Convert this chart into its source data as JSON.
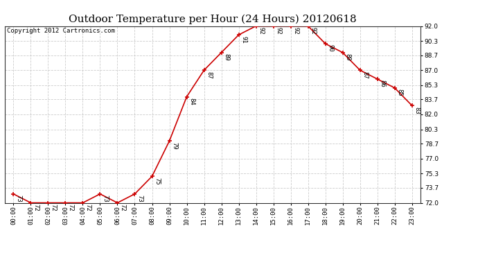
{
  "title": "Outdoor Temperature per Hour (24 Hours) 20120618",
  "copyright_text": "Copyright 2012 Cartronics.com",
  "hours": [
    "00:00",
    "01:00",
    "02:00",
    "03:00",
    "04:00",
    "05:00",
    "06:00",
    "07:00",
    "08:00",
    "09:00",
    "10:00",
    "11:00",
    "12:00",
    "13:00",
    "14:00",
    "15:00",
    "16:00",
    "17:00",
    "18:00",
    "19:00",
    "20:00",
    "21:00",
    "22:00",
    "23:00"
  ],
  "temperatures": [
    73,
    72,
    72,
    72,
    72,
    73,
    72,
    73,
    75,
    79,
    84,
    87,
    89,
    91,
    92,
    92,
    92,
    92,
    90,
    89,
    87,
    86,
    85,
    83
  ],
  "ylim_min": 72.0,
  "ylim_max": 92.0,
  "yticks": [
    72.0,
    73.7,
    75.3,
    77.0,
    78.7,
    80.3,
    82.0,
    83.7,
    85.3,
    87.0,
    88.7,
    90.3,
    92.0
  ],
  "line_color": "#cc0000",
  "marker_color": "#cc0000",
  "bg_color": "#ffffff",
  "grid_color": "#cccccc",
  "title_fontsize": 11,
  "label_fontsize": 6.5,
  "annotation_fontsize": 6.5,
  "copyright_fontsize": 6.5
}
